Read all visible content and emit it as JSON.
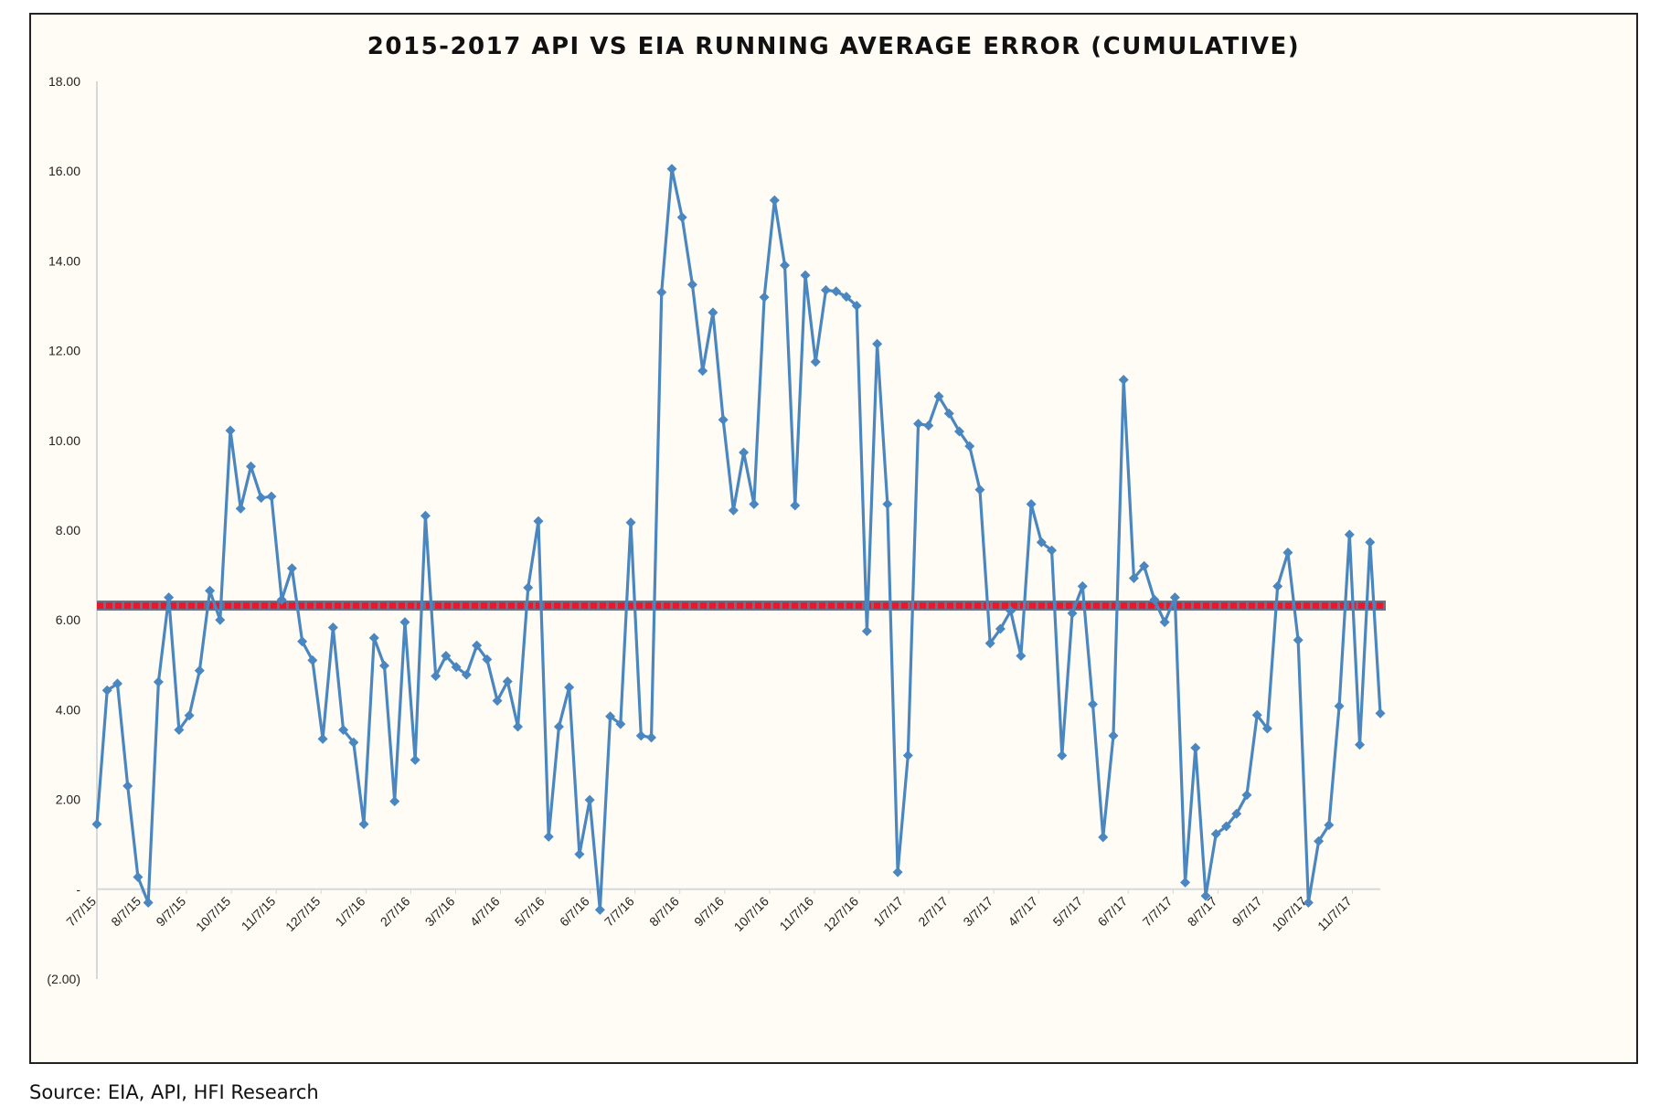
{
  "chart_data": {
    "type": "line",
    "title": "2015-2017 API VS EIA RUNNING AVERAGE ERROR (CUMULATIVE)",
    "xlabel": "",
    "ylabel": "",
    "ylim": [
      -2,
      18
    ],
    "yticks": [
      18,
      16,
      14,
      12,
      10,
      8,
      6,
      4,
      2,
      0,
      -2
    ],
    "ytick_labels": [
      "18.00",
      "16.00",
      "14.00",
      "12.00",
      "10.00",
      "8.00",
      "6.00",
      "4.00",
      "2.00",
      "-",
      "(2.00)"
    ],
    "xticks": [
      "7/7/15",
      "8/7/15",
      "9/7/15",
      "10/7/15",
      "11/7/15",
      "12/7/15",
      "1/7/16",
      "2/7/16",
      "3/7/16",
      "4/7/16",
      "5/7/16",
      "6/7/16",
      "7/7/16",
      "8/7/16",
      "9/7/16",
      "10/7/16",
      "11/7/16",
      "12/7/16",
      "1/7/17",
      "2/7/17",
      "3/7/17",
      "4/7/17",
      "5/7/17",
      "6/7/17",
      "7/7/17",
      "8/7/17",
      "9/7/17",
      "10/7/17",
      "11/7/17"
    ],
    "grid": false,
    "legend": "none",
    "series": [
      {
        "color": "#4a86c0",
        "marker": "diamond",
        "values": [
          1.45,
          4.43,
          4.58,
          2.3,
          0.27,
          -0.3,
          4.62,
          6.5,
          3.55,
          3.87,
          4.87,
          6.65,
          6.0,
          10.22,
          8.48,
          9.42,
          8.72,
          8.75,
          6.45,
          7.15,
          5.52,
          5.1,
          3.35,
          5.83,
          3.55,
          3.27,
          1.45,
          5.6,
          4.98,
          1.96,
          5.95,
          2.88,
          8.32,
          4.75,
          5.2,
          4.95,
          4.78,
          5.43,
          5.12,
          4.2,
          4.63,
          3.62,
          6.72,
          8.2,
          1.17,
          3.62,
          4.5,
          0.78,
          1.99,
          -0.46,
          3.85,
          3.68,
          8.17,
          3.42,
          3.38,
          13.3,
          16.05,
          14.97,
          13.47,
          11.55,
          12.85,
          10.46,
          8.44,
          9.73,
          8.58,
          13.19,
          15.35,
          13.9,
          8.55,
          13.68,
          11.75,
          13.35,
          13.32,
          13.2,
          13.0,
          5.75,
          12.15,
          8.58,
          0.38,
          2.98,
          10.37,
          10.33,
          10.98,
          10.6,
          10.2,
          9.87,
          8.9,
          5.48,
          5.8,
          6.2,
          5.2,
          8.58,
          7.73,
          7.55,
          2.98,
          6.15,
          6.75,
          4.12,
          1.16,
          3.42,
          11.35,
          6.93,
          7.2,
          6.45,
          5.95,
          6.5,
          0.15,
          3.15,
          -0.15,
          1.23,
          1.4,
          1.68,
          2.1,
          3.88,
          3.58,
          6.75,
          7.5,
          5.55,
          -0.3,
          1.07,
          1.43,
          4.08,
          7.9,
          3.22,
          7.73,
          3.92
        ]
      },
      {
        "color": "#e8192c",
        "style": "dashed",
        "type": "horizontal-line",
        "value": 6.32
      }
    ]
  },
  "source_note": "Source: EIA, API, HFI Research"
}
